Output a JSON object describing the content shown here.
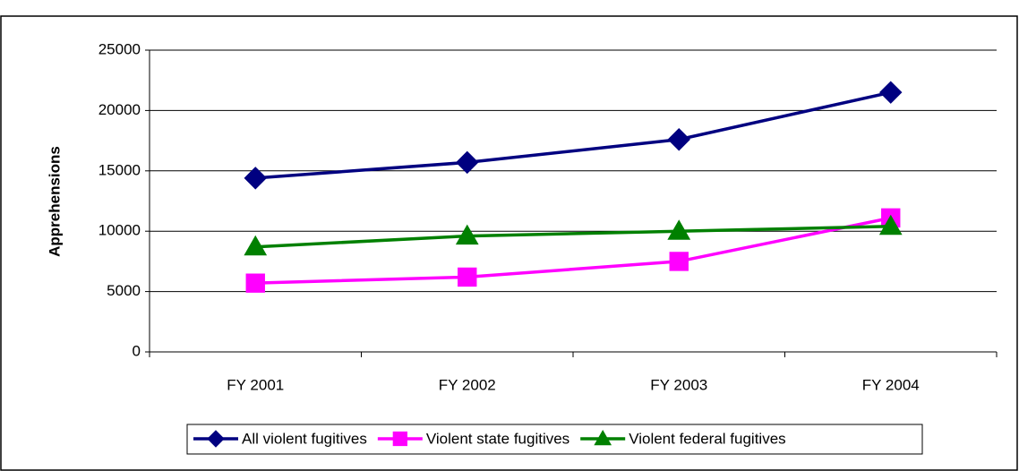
{
  "chart_data": {
    "type": "line",
    "y_label": "Apprehensions",
    "categories": [
      "FY 2001",
      "FY 2002",
      "FY 2003",
      "FY 2004"
    ],
    "series": [
      {
        "name": "All violent fugitives",
        "color": "#000080",
        "marker": "diamond",
        "values": [
          14400,
          15700,
          17600,
          21500
        ]
      },
      {
        "name": "Violent state fugitives",
        "color": "#ff00ff",
        "marker": "square",
        "values": [
          5700,
          6200,
          7500,
          11100
        ]
      },
      {
        "name": "Violent federal fugitives",
        "color": "#008000",
        "marker": "triangle",
        "values": [
          8700,
          9600,
          10000,
          10400
        ]
      }
    ],
    "ylim": [
      0,
      25000
    ],
    "yticks": [
      0,
      5000,
      10000,
      15000,
      20000,
      25000
    ],
    "grid": true,
    "legend": "bottom"
  }
}
